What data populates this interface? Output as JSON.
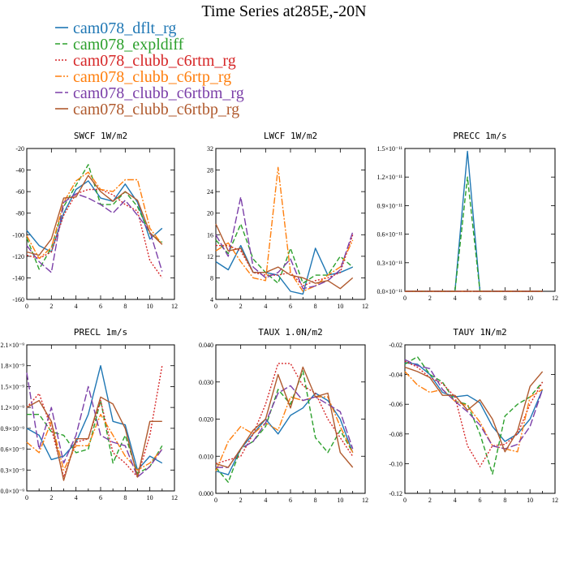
{
  "title": "Time Series at285E,-20N",
  "legend": [
    {
      "name": "cam078_dflt_rg",
      "color": "#1f77b4",
      "dash": ""
    },
    {
      "name": "cam078_expldiff",
      "color": "#2ca02c",
      "dash": "6,3"
    },
    {
      "name": "cam078_clubb_c6rtm_rg",
      "color": "#d62728",
      "dash": "2,2"
    },
    {
      "name": "cam078_clubb_c6rtp_rg",
      "color": "#ff7f0e",
      "dash": "8,2,2,2"
    },
    {
      "name": "cam078_clubb_c6rtbm_rg",
      "color": "#7b3fa8",
      "dash": "9,3"
    },
    {
      "name": "cam078_clubb_c6rtbp_rg",
      "color": "#b05a2e",
      "dash": ""
    }
  ],
  "chart_data": [
    {
      "type": "line",
      "title": "SWCF   1W/m2",
      "x": [
        0,
        1,
        2,
        3,
        4,
        5,
        6,
        7,
        8,
        9,
        10,
        11
      ],
      "xlim": [
        0,
        12
      ],
      "ylim": [
        -160,
        -20
      ],
      "xticks": [
        "0",
        "2",
        "4",
        "6",
        "8",
        "10",
        "12"
      ],
      "yticks": [
        "-160",
        "-140",
        "-120",
        "-100",
        "-80",
        "-60",
        "-40",
        "-20"
      ],
      "series": [
        {
          "name": "cam078_dflt_rg",
          "values": [
            -96,
            -110,
            -116,
            -80,
            -58,
            -50,
            -66,
            -69,
            -53,
            -70,
            -104,
            -94
          ]
        },
        {
          "name": "cam078_expldiff",
          "values": [
            -103,
            -132,
            -112,
            -74,
            -54,
            -35,
            -72,
            -72,
            -60,
            -74,
            -99,
            -107
          ]
        },
        {
          "name": "cam078_clubb_c6rtm_rg",
          "values": [
            -119,
            -122,
            -116,
            -82,
            -62,
            -58,
            -58,
            -63,
            -72,
            -78,
            -124,
            -140
          ]
        },
        {
          "name": "cam078_clubb_c6rtp_rg",
          "values": [
            -101,
            -122,
            -112,
            -70,
            -50,
            -42,
            -58,
            -60,
            -49,
            -49,
            -94,
            -109
          ]
        },
        {
          "name": "cam078_clubb_c6rtbm_rg",
          "values": [
            -110,
            -125,
            -135,
            -70,
            -62,
            -66,
            -72,
            -80,
            -68,
            -82,
            -97,
            -134
          ]
        },
        {
          "name": "cam078_clubb_c6rtbp_rg",
          "values": [
            -116,
            -119,
            -104,
            -66,
            -65,
            -45,
            -60,
            -69,
            -60,
            -68,
            -98,
            -109
          ]
        }
      ]
    },
    {
      "type": "line",
      "title": "LWCF   1W/m2",
      "x": [
        0,
        1,
        2,
        3,
        4,
        5,
        6,
        7,
        8,
        9,
        10,
        11
      ],
      "xlim": [
        0,
        12
      ],
      "ylim": [
        4,
        32
      ],
      "xticks": [
        "0",
        "2",
        "4",
        "6",
        "8",
        "10",
        "12"
      ],
      "yticks": [
        "4",
        "8",
        "12",
        "16",
        "20",
        "24",
        "28",
        "32"
      ],
      "series": [
        {
          "name": "cam078_dflt_rg",
          "values": [
            11,
            9.5,
            14,
            9,
            9,
            8.5,
            5.5,
            5,
            13.5,
            8.5,
            9,
            10
          ]
        },
        {
          "name": "cam078_expldiff",
          "values": [
            15,
            12.5,
            18,
            11.5,
            9,
            7,
            13.5,
            7,
            8.5,
            8.5,
            12,
            10
          ]
        },
        {
          "name": "cam078_clubb_c6rtm_rg",
          "values": [
            14,
            14,
            13,
            9,
            8.5,
            8.5,
            9,
            6.5,
            7.5,
            8,
            9,
            16
          ]
        },
        {
          "name": "cam078_clubb_c6rtp_rg",
          "values": [
            13,
            14.5,
            11,
            8,
            7.5,
            28.5,
            9,
            5.5,
            6.5,
            8.5,
            10,
            15
          ]
        },
        {
          "name": "cam078_clubb_c6rtbm_rg",
          "values": [
            16,
            12,
            23,
            10,
            8,
            9,
            11.5,
            6,
            6.5,
            7.5,
            9.5,
            16.5
          ]
        },
        {
          "name": "cam078_clubb_c6rtbp_rg",
          "values": [
            18,
            13,
            13.5,
            9,
            9,
            10,
            8.5,
            8,
            7,
            7.5,
            6,
            8
          ]
        }
      ]
    },
    {
      "type": "line",
      "title": "PRECC   1m/s",
      "x": [
        0,
        1,
        2,
        3,
        4,
        5,
        6,
        7,
        8,
        9,
        10,
        11
      ],
      "xlim": [
        0,
        12
      ],
      "ylim": [
        0,
        15
      ],
      "xticks": [
        "0",
        "2",
        "4",
        "6",
        "8",
        "10",
        "12"
      ],
      "yticks": [
        "0.0×10⁻¹¹",
        "0.3×10⁻¹¹",
        "0.6×10⁻¹¹",
        "0.9×10⁻¹¹",
        "1.2×10⁻¹¹",
        "1.5×10⁻¹¹"
      ],
      "series": [
        {
          "name": "cam078_dflt_rg",
          "values": [
            0,
            0,
            0,
            0,
            0,
            14.7,
            0,
            0,
            0,
            0,
            0,
            0
          ]
        },
        {
          "name": "cam078_expldiff",
          "values": [
            0,
            0,
            0,
            0,
            0,
            12,
            0,
            0,
            0,
            0,
            0,
            0
          ]
        },
        {
          "name": "cam078_clubb_c6rtm_rg",
          "values": [
            0,
            0,
            0,
            0,
            0,
            0,
            0,
            0,
            0,
            0,
            0,
            0
          ]
        },
        {
          "name": "cam078_clubb_c6rtp_rg",
          "values": [
            0,
            0,
            0,
            0,
            0,
            0,
            0,
            0,
            0,
            0,
            0,
            0
          ]
        },
        {
          "name": "cam078_clubb_c6rtbm_rg",
          "values": [
            0,
            0,
            0,
            0,
            0,
            0,
            0,
            0,
            0,
            0,
            0,
            0
          ]
        },
        {
          "name": "cam078_clubb_c6rtbp_rg",
          "values": [
            0,
            0,
            0,
            0,
            0,
            0,
            0,
            0,
            0,
            0,
            0,
            0
          ]
        }
      ]
    },
    {
      "type": "line",
      "title": "PRECL   1m/s",
      "x": [
        0,
        1,
        2,
        3,
        4,
        5,
        6,
        7,
        8,
        9,
        10,
        11
      ],
      "xlim": [
        0,
        12
      ],
      "ylim": [
        0,
        21
      ],
      "xticks": [
        "0",
        "2",
        "4",
        "6",
        "8",
        "10",
        "12"
      ],
      "yticks": [
        "0.0×10⁻⁹",
        "0.3×10⁻⁹",
        "0.6×10⁻⁹",
        "0.9×10⁻⁹",
        "1.2×10⁻⁹",
        "1.5×10⁻⁹",
        "1.8×10⁻⁹",
        "2.1×10⁻⁹"
      ],
      "series": [
        {
          "name": "cam078_dflt_rg",
          "values": [
            9,
            8,
            4.5,
            5,
            7,
            11,
            18,
            10,
            9.5,
            3,
            5,
            4
          ]
        },
        {
          "name": "cam078_expldiff",
          "values": [
            11,
            11,
            8.5,
            8,
            5.5,
            6,
            13,
            4,
            8,
            2.5,
            3.5,
            6.5
          ]
        },
        {
          "name": "cam078_clubb_c6rtm_rg",
          "values": [
            12,
            14,
            9,
            2,
            7,
            7.5,
            13,
            5.5,
            4,
            2,
            8,
            18
          ]
        },
        {
          "name": "cam078_clubb_c6rtp_rg",
          "values": [
            7,
            5.5,
            10,
            3,
            6.5,
            6.5,
            11,
            8,
            5,
            3,
            4,
            6
          ]
        },
        {
          "name": "cam078_clubb_c6rtbm_rg",
          "values": [
            17,
            6,
            12,
            4,
            8,
            15,
            8,
            7,
            6.5,
            2,
            3.5,
            6
          ]
        },
        {
          "name": "cam078_clubb_c6rtbp_rg",
          "values": [
            12,
            13,
            10,
            1.5,
            7.5,
            7.5,
            13.5,
            12.5,
            9,
            2,
            10,
            10
          ]
        }
      ]
    },
    {
      "type": "line",
      "title": "TAUX   1.0N/m2",
      "x": [
        0,
        1,
        2,
        3,
        4,
        5,
        6,
        7,
        8,
        9,
        10,
        11
      ],
      "xlim": [
        0,
        12
      ],
      "ylim": [
        0,
        0.04
      ],
      "xticks": [
        "0",
        "2",
        "4",
        "6",
        "8",
        "10",
        "12"
      ],
      "yticks": [
        "0.000",
        "0.010",
        "0.020",
        "0.030",
        "0.040"
      ],
      "series": [
        {
          "name": "cam078_dflt_rg",
          "values": [
            0.006,
            0.005,
            0.012,
            0.016,
            0.02,
            0.016,
            0.021,
            0.023,
            0.027,
            0.025,
            0.02,
            0.011
          ]
        },
        {
          "name": "cam078_expldiff",
          "values": [
            0.007,
            0.003,
            0.012,
            0.014,
            0.018,
            0.028,
            0.024,
            0.033,
            0.015,
            0.011,
            0.017,
            0.011
          ]
        },
        {
          "name": "cam078_clubb_c6rtm_rg",
          "values": [
            0.008,
            0.009,
            0.01,
            0.016,
            0.024,
            0.035,
            0.035,
            0.029,
            0.027,
            0.02,
            0.015,
            0.01
          ]
        },
        {
          "name": "cam078_clubb_c6rtp_rg",
          "values": [
            0.006,
            0.014,
            0.018,
            0.016,
            0.019,
            0.017,
            0.026,
            0.025,
            0.026,
            0.026,
            0.018,
            0.011
          ]
        },
        {
          "name": "cam078_clubb_c6rtbm_rg",
          "values": [
            0.007,
            0.007,
            0.012,
            0.014,
            0.019,
            0.027,
            0.029,
            0.025,
            0.026,
            0.024,
            0.022,
            0.012
          ]
        },
        {
          "name": "cam078_clubb_c6rtbp_rg",
          "values": [
            0.008,
            0.007,
            0.012,
            0.017,
            0.02,
            0.032,
            0.023,
            0.034,
            0.026,
            0.027,
            0.011,
            0.007
          ]
        }
      ]
    },
    {
      "type": "line",
      "title": "TAUY   1N/m2",
      "x": [
        0,
        1,
        2,
        3,
        4,
        5,
        6,
        7,
        8,
        9,
        10,
        11
      ],
      "xlim": [
        0,
        12
      ],
      "ylim": [
        -0.12,
        -0.02
      ],
      "xticks": [
        "0",
        "2",
        "4",
        "6",
        "8",
        "10",
        "12"
      ],
      "yticks": [
        "-0.12",
        "-0.10",
        "-0.08",
        "-0.06",
        "-0.04",
        "-0.02"
      ],
      "series": [
        {
          "name": "cam078_dflt_rg",
          "values": [
            -0.032,
            -0.033,
            -0.04,
            -0.052,
            -0.055,
            -0.054,
            -0.059,
            -0.075,
            -0.085,
            -0.08,
            -0.07,
            -0.05
          ]
        },
        {
          "name": "cam078_expldiff",
          "values": [
            -0.033,
            -0.028,
            -0.04,
            -0.045,
            -0.058,
            -0.06,
            -0.08,
            -0.107,
            -0.068,
            -0.06,
            -0.055,
            -0.045
          ]
        },
        {
          "name": "cam078_clubb_c6rtm_rg",
          "values": [
            -0.031,
            -0.035,
            -0.042,
            -0.046,
            -0.055,
            -0.088,
            -0.102,
            -0.088,
            -0.087,
            -0.08,
            -0.06,
            -0.045
          ]
        },
        {
          "name": "cam078_clubb_c6rtp_rg",
          "values": [
            -0.038,
            -0.047,
            -0.052,
            -0.05,
            -0.058,
            -0.061,
            -0.072,
            -0.088,
            -0.09,
            -0.092,
            -0.055,
            -0.05
          ]
        },
        {
          "name": "cam078_clubb_c6rtbm_rg",
          "values": [
            -0.03,
            -0.034,
            -0.036,
            -0.05,
            -0.058,
            -0.065,
            -0.074,
            -0.088,
            -0.09,
            -0.087,
            -0.075,
            -0.05
          ]
        },
        {
          "name": "cam078_clubb_c6rtbp_rg",
          "values": [
            -0.035,
            -0.038,
            -0.042,
            -0.054,
            -0.054,
            -0.064,
            -0.057,
            -0.07,
            -0.092,
            -0.078,
            -0.048,
            -0.038
          ]
        }
      ]
    }
  ]
}
